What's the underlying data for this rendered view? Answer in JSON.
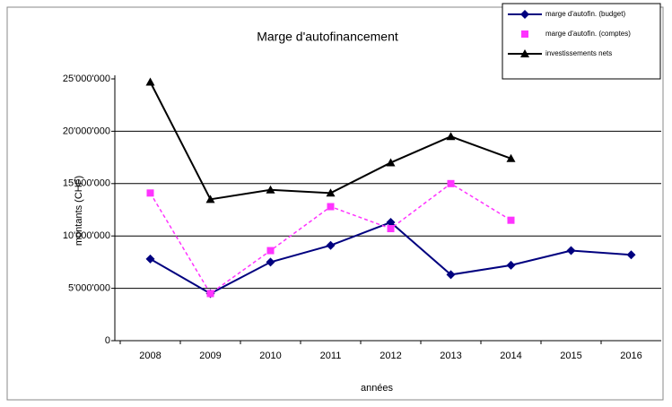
{
  "chart_data": {
    "type": "line",
    "title": "Marge d'autofinancement",
    "x_label": "années",
    "y_label": "montants (CHF)",
    "categories": [
      "2008",
      "2009",
      "2010",
      "2011",
      "2012",
      "2013",
      "2014",
      "2015",
      "2016"
    ],
    "series": [
      {
        "name": "marge d'autofin. (budget)",
        "color": "#00007f",
        "marker": "diamond",
        "dash": false,
        "values": [
          7800000,
          4500000,
          7500000,
          9100000,
          11300000,
          6300000,
          7200000,
          8600000,
          8200000
        ]
      },
      {
        "name": "marge d'autofin. (comptes)",
        "color": "#ff33ff",
        "marker": "square",
        "dash": true,
        "values": [
          14100000,
          4500000,
          8600000,
          12800000,
          10700000,
          15000000,
          11500000,
          null,
          null
        ]
      },
      {
        "name": "investissements nets",
        "color": "#000000",
        "marker": "triangle",
        "dash": false,
        "values": [
          24700000,
          13500000,
          14400000,
          14100000,
          17000000,
          19500000,
          17400000,
          null,
          null
        ]
      }
    ],
    "ylim": [
      0,
      25000000
    ],
    "yticks": [
      0,
      {
        "value": 5000000,
        "label": "5'000'000"
      },
      {
        "value": 10000000,
        "label": "10'000'000"
      },
      {
        "value": 15000000,
        "label": "15'000'000"
      },
      {
        "value": 20000000,
        "label": "20'000'000"
      },
      {
        "value": 25000000,
        "label": "25'000'000"
      }
    ],
    "grid": true,
    "legend": "top-right"
  }
}
